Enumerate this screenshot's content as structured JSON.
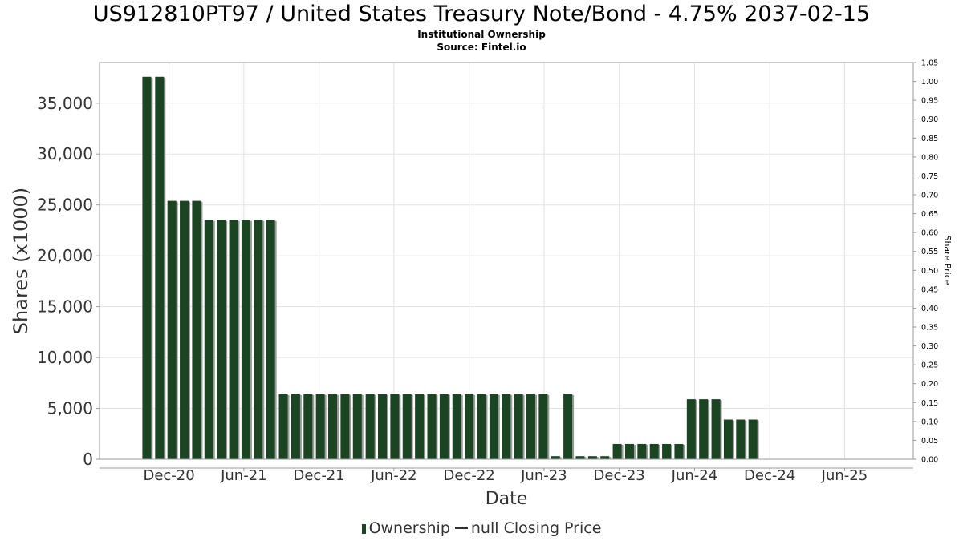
{
  "title": "US912810PT97 / United States Treasury Note/Bond - 4.75% 2037-02-15",
  "subtitle": "Institutional Ownership",
  "source": "Source: Fintel.io",
  "legend": {
    "ownership": "Ownership",
    "closing_price": "null Closing Price"
  },
  "colors": {
    "bar": "#1b4423",
    "bar_shadow": "#9a9a9a",
    "grid": "#e2e2e2",
    "axis": "#999999"
  },
  "chart_data": {
    "type": "bar",
    "xlabel": "Date",
    "ylabel": "Shares (x1000)",
    "y2label": "Share Price",
    "ylim": [
      0,
      39000
    ],
    "y2lim": [
      0,
      1.05
    ],
    "grid": true,
    "legend_position": "bottom",
    "x_range": [
      "2020-06-15",
      "2025-11-15"
    ],
    "x_ticks": [
      {
        "date": "2020-12-01",
        "label": "Dec-20"
      },
      {
        "date": "2021-06-01",
        "label": "Jun-21"
      },
      {
        "date": "2021-12-01",
        "label": "Dec-21"
      },
      {
        "date": "2022-06-01",
        "label": "Jun-22"
      },
      {
        "date": "2022-12-01",
        "label": "Dec-22"
      },
      {
        "date": "2023-06-01",
        "label": "Jun-23"
      },
      {
        "date": "2023-12-01",
        "label": "Dec-23"
      },
      {
        "date": "2024-06-01",
        "label": "Jun-24"
      },
      {
        "date": "2024-12-01",
        "label": "Dec-24"
      },
      {
        "date": "2025-06-01",
        "label": "Jun-25"
      }
    ],
    "y_ticks": [
      {
        "value": 0,
        "label": "0"
      },
      {
        "value": 5000,
        "label": "5,000"
      },
      {
        "value": 10000,
        "label": "10,000"
      },
      {
        "value": 15000,
        "label": "15,000"
      },
      {
        "value": 20000,
        "label": "20,000"
      },
      {
        "value": 25000,
        "label": "25,000"
      },
      {
        "value": 30000,
        "label": "30,000"
      },
      {
        "value": 35000,
        "label": "35,000"
      }
    ],
    "y2_ticks": [
      "0.00",
      "0.05",
      "0.10",
      "0.15",
      "0.20",
      "0.25",
      "0.30",
      "0.35",
      "0.40",
      "0.45",
      "0.50",
      "0.55",
      "0.60",
      "0.65",
      "0.70",
      "0.75",
      "0.80",
      "0.85",
      "0.90",
      "0.95",
      "1.00",
      "1.05"
    ],
    "series": [
      {
        "name": "Ownership",
        "points": [
          {
            "x": "2020-10-08",
            "y": 37600
          },
          {
            "x": "2020-11-08",
            "y": 37600
          },
          {
            "x": "2020-12-08",
            "y": 25400
          },
          {
            "x": "2021-01-07",
            "y": 25400
          },
          {
            "x": "2021-02-06",
            "y": 25400
          },
          {
            "x": "2021-03-08",
            "y": 23500
          },
          {
            "x": "2021-04-07",
            "y": 23500
          },
          {
            "x": "2021-05-07",
            "y": 23500
          },
          {
            "x": "2021-06-06",
            "y": 23500
          },
          {
            "x": "2021-07-06",
            "y": 23500
          },
          {
            "x": "2021-08-05",
            "y": 23500
          },
          {
            "x": "2021-09-05",
            "y": 6400
          },
          {
            "x": "2021-10-05",
            "y": 6400
          },
          {
            "x": "2021-11-04",
            "y": 6400
          },
          {
            "x": "2021-12-04",
            "y": 6400
          },
          {
            "x": "2022-01-03",
            "y": 6400
          },
          {
            "x": "2022-02-02",
            "y": 6400
          },
          {
            "x": "2022-03-04",
            "y": 6400
          },
          {
            "x": "2022-04-04",
            "y": 6400
          },
          {
            "x": "2022-05-04",
            "y": 6400
          },
          {
            "x": "2022-06-03",
            "y": 6400
          },
          {
            "x": "2022-07-03",
            "y": 6400
          },
          {
            "x": "2022-08-02",
            "y": 6400
          },
          {
            "x": "2022-09-01",
            "y": 6400
          },
          {
            "x": "2022-10-01",
            "y": 6400
          },
          {
            "x": "2022-11-01",
            "y": 6400
          },
          {
            "x": "2022-12-01",
            "y": 6400
          },
          {
            "x": "2022-12-31",
            "y": 6400
          },
          {
            "x": "2023-01-30",
            "y": 6400
          },
          {
            "x": "2023-03-01",
            "y": 6400
          },
          {
            "x": "2023-03-31",
            "y": 6400
          },
          {
            "x": "2023-04-30",
            "y": 6400
          },
          {
            "x": "2023-05-30",
            "y": 6400
          },
          {
            "x": "2023-06-29",
            "y": 300
          },
          {
            "x": "2023-07-29",
            "y": 6400
          },
          {
            "x": "2023-08-28",
            "y": 300
          },
          {
            "x": "2023-09-27",
            "y": 300
          },
          {
            "x": "2023-10-27",
            "y": 300
          },
          {
            "x": "2023-11-26",
            "y": 1500
          },
          {
            "x": "2023-12-26",
            "y": 1500
          },
          {
            "x": "2024-01-25",
            "y": 1500
          },
          {
            "x": "2024-02-24",
            "y": 1500
          },
          {
            "x": "2024-03-25",
            "y": 1500
          },
          {
            "x": "2024-04-24",
            "y": 1500
          },
          {
            "x": "2024-05-24",
            "y": 5900
          },
          {
            "x": "2024-06-23",
            "y": 5900
          },
          {
            "x": "2024-07-23",
            "y": 5900
          },
          {
            "x": "2024-08-22",
            "y": 3900
          },
          {
            "x": "2024-09-21",
            "y": 3900
          },
          {
            "x": "2024-10-21",
            "y": 3900
          },
          {
            "x": "2024-11-20",
            "y": 0
          },
          {
            "x": "2024-12-20",
            "y": 0
          },
          {
            "x": "2025-01-19",
            "y": 0
          },
          {
            "x": "2025-02-18",
            "y": 0
          },
          {
            "x": "2025-03-20",
            "y": 0
          },
          {
            "x": "2025-04-19",
            "y": 0
          },
          {
            "x": "2025-05-19",
            "y": 0
          },
          {
            "x": "2025-06-18",
            "y": 0
          },
          {
            "x": "2025-07-18",
            "y": 0
          },
          {
            "x": "2025-08-17",
            "y": 0
          }
        ]
      }
    ]
  }
}
